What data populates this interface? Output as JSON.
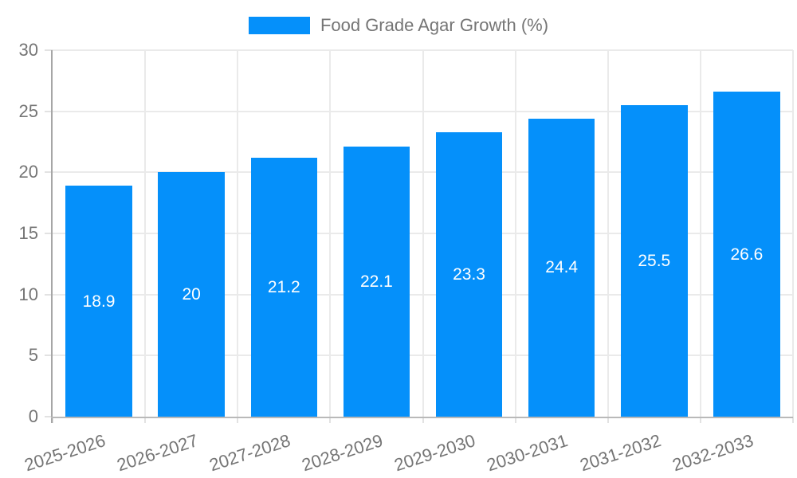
{
  "chart_data": {
    "type": "bar",
    "legend": {
      "position": "top"
    },
    "categories": [
      "2025-2026",
      "2026-2027",
      "2027-2028",
      "2028-2029",
      "2029-2030",
      "2030-2031",
      "2031-2032",
      "2032-2033"
    ],
    "series": [
      {
        "name": "Food Grade Agar Growth (%)",
        "values": [
          18.9,
          20,
          21.2,
          22.1,
          23.3,
          24.4,
          25.5,
          26.6
        ],
        "labels": [
          "18.9",
          "20",
          "21.2",
          "22.1",
          "23.3",
          "24.4",
          "25.5",
          "26.6"
        ]
      }
    ],
    "ylim": [
      0,
      30
    ],
    "yticks": [
      0,
      5,
      10,
      15,
      20,
      25,
      30
    ],
    "grid": {
      "horizontal": true,
      "vertical": true
    },
    "colors": {
      "bar": "#0590fa",
      "grid": "#eaeaea",
      "tick": "#e2e2e2",
      "y_axis_line": "#a6a6a6",
      "x_axis_line": "#b9b9b9",
      "tick_label": "#757575",
      "legend_label": "#757575",
      "data_label": "#ffffff",
      "background": "#ffffff"
    }
  }
}
